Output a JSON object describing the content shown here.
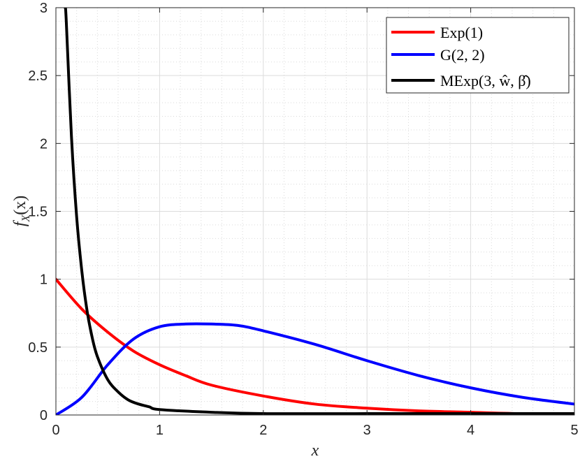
{
  "chart_data": {
    "type": "line",
    "title": "",
    "xlabel": "x",
    "ylabel": "f_X(x)",
    "xlim": [
      0,
      5
    ],
    "ylim": [
      0,
      3
    ],
    "xticks": [
      0,
      1,
      2,
      3,
      4,
      5
    ],
    "xtick_labels": [
      "0",
      "1",
      "2",
      "3",
      "4",
      "5"
    ],
    "yticks": [
      0,
      0.5,
      1,
      1.5,
      2,
      2.5,
      3
    ],
    "ytick_labels": [
      "0",
      "0.5",
      "1",
      "1.5",
      "2",
      "2.5",
      "3"
    ],
    "grid": true,
    "minor_grid": true,
    "legend_position": "top-right",
    "series": [
      {
        "name": "Exp(1)",
        "color": "#ff0000",
        "x": [
          0,
          0.25,
          0.5,
          0.75,
          1,
          1.25,
          1.5,
          2,
          2.5,
          3,
          3.5,
          4,
          4.5,
          5
        ],
        "y": [
          1,
          0.78,
          0.61,
          0.47,
          0.37,
          0.29,
          0.22,
          0.14,
          0.08,
          0.05,
          0.03,
          0.02,
          0.01,
          0.01
        ]
      },
      {
        "name": "G(2,2)",
        "color": "#0000ff",
        "x": [
          0,
          0.25,
          0.5,
          0.75,
          1,
          1.25,
          1.5,
          1.75,
          2,
          2.5,
          3,
          3.5,
          4,
          4.5,
          5
        ],
        "y": [
          0,
          0.13,
          0.37,
          0.56,
          0.65,
          0.67,
          0.67,
          0.66,
          0.62,
          0.52,
          0.4,
          0.29,
          0.2,
          0.13,
          0.08
        ]
      },
      {
        "name": "MExp(3, ŵ, β̂)",
        "color": "#000000",
        "x": [
          0.09,
          0.1,
          0.15,
          0.2,
          0.25,
          0.3,
          0.35,
          0.4,
          0.5,
          0.6,
          0.7,
          0.8,
          0.9,
          1,
          1.5,
          2,
          3,
          4,
          5
        ],
        "y": [
          3,
          2.9,
          2.05,
          1.46,
          1.06,
          0.77,
          0.57,
          0.43,
          0.26,
          0.17,
          0.11,
          0.08,
          0.06,
          0.04,
          0.02,
          0.01,
          0.01,
          0.01,
          0.01
        ]
      }
    ]
  },
  "legend": {
    "items": [
      {
        "label": "Exp(1)"
      },
      {
        "label": "G(2, 2)"
      },
      {
        "label": "MExp(3, ŵ, β̂)"
      }
    ]
  },
  "axes": {
    "xlabel": "x",
    "ylabel_main": "f",
    "ylabel_sub": "X",
    "ylabel_arg": "(x)"
  }
}
